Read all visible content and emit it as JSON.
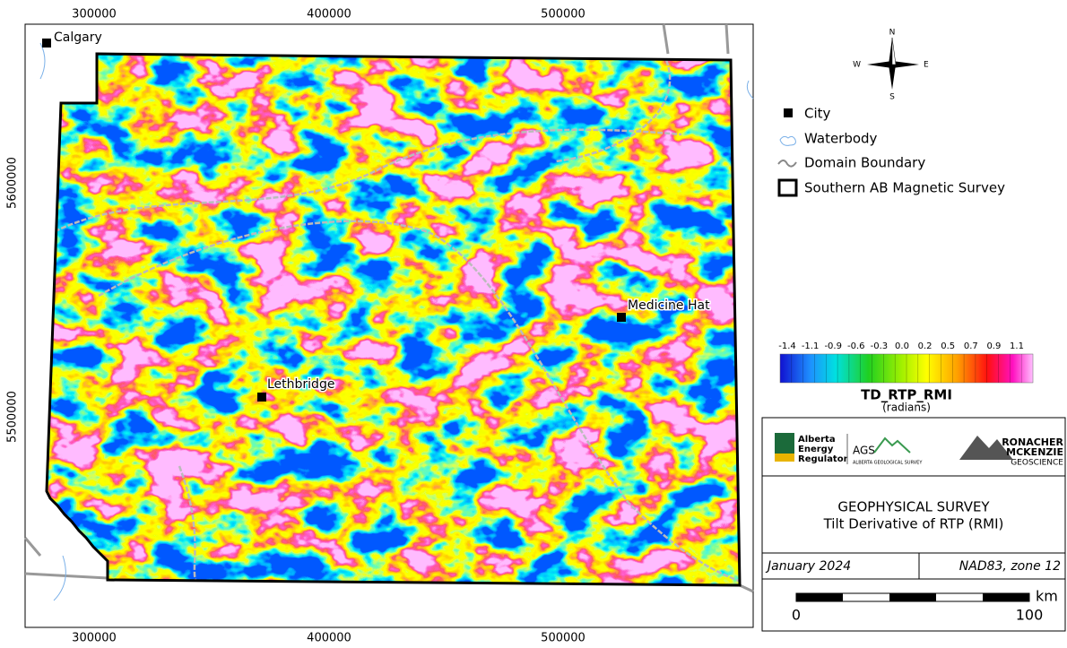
{
  "map": {
    "x_labels_top": [
      "300000",
      "400000",
      "500000"
    ],
    "x_labels_bottom": [
      "300000",
      "400000",
      "500000"
    ],
    "y_labels": [
      "5600000",
      "5500000"
    ],
    "cities": [
      "Calgary",
      "Medicine Hat",
      "Lethbridge"
    ]
  },
  "north_arrow": {
    "n": "N",
    "e": "E",
    "s": "S",
    "w": "W"
  },
  "legend": {
    "items": [
      "City",
      "Waterbody",
      "Domain Boundary",
      "Southern AB Magnetic Survey"
    ]
  },
  "colorbar": {
    "ticks": [
      "-1.4",
      "-1.1",
      "-0.9",
      "-0.6",
      "-0.3",
      "0.0",
      "0.2",
      "0.5",
      "0.7",
      "0.9",
      "1.1"
    ],
    "title": "TD_RTP_RMI",
    "units": "(radians)"
  },
  "logos": {
    "aer": [
      "Alberta",
      "Energy",
      "Regulator"
    ],
    "ags": "AGS",
    "ags_full": "ALBERTA GEOLOGICAL SURVEY",
    "rm": [
      "RONACHER",
      "MCKENZIE"
    ],
    "rm_sub": "GEOSCIENCE"
  },
  "title_block": {
    "title": "GEOPHYSICAL SURVEY",
    "subtitle": "Tilt Derivative of RTP (RMI)",
    "date": "January 2024",
    "projection": "NAD83, zone 12"
  },
  "scale_bar": {
    "labels": [
      "0",
      "100"
    ],
    "unit": "km"
  }
}
